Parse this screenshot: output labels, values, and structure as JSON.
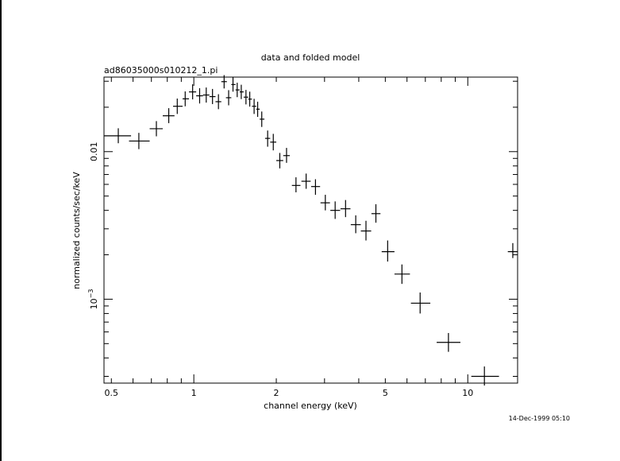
{
  "chart_data": {
    "type": "scatter",
    "title": "data and folded model",
    "subtitle": "ad86035000s010212_1.pi",
    "xlabel": "channel energy (keV)",
    "ylabel": "normalized counts/sec/keV",
    "timestamp": "14-Dec-1999 05:10",
    "x_scale": "log",
    "y_scale": "log",
    "xlim": [
      0.47,
      15.2
    ],
    "ylim": [
      0.00027,
      0.032
    ],
    "x_ticks": [
      {
        "value": 0.5,
        "label": "0.5"
      },
      {
        "value": 1,
        "label": "1"
      },
      {
        "value": 2,
        "label": "2"
      },
      {
        "value": 5,
        "label": "5"
      },
      {
        "value": 10,
        "label": "10"
      }
    ],
    "y_ticks": [
      {
        "value": 0.01,
        "label": "0.01"
      },
      {
        "value": 0.001,
        "label": "10",
        "exponent": "−3"
      }
    ],
    "grid": false,
    "points": [
      {
        "x": 0.53,
        "y": 0.0128,
        "xlo": 0.47,
        "xhi": 0.59,
        "ylo": 0.0114,
        "yhi": 0.0144
      },
      {
        "x": 0.63,
        "y": 0.0118,
        "xlo": 0.58,
        "xhi": 0.69,
        "ylo": 0.0104,
        "yhi": 0.0134
      },
      {
        "x": 0.73,
        "y": 0.0143,
        "xlo": 0.69,
        "xhi": 0.77,
        "ylo": 0.0127,
        "yhi": 0.0161
      },
      {
        "x": 0.81,
        "y": 0.0175,
        "xlo": 0.77,
        "xhi": 0.85,
        "ylo": 0.0156,
        "yhi": 0.0197
      },
      {
        "x": 0.87,
        "y": 0.0203,
        "xlo": 0.84,
        "xhi": 0.91,
        "ylo": 0.018,
        "yhi": 0.0229
      },
      {
        "x": 0.93,
        "y": 0.0228,
        "xlo": 0.91,
        "xhi": 0.96,
        "ylo": 0.0203,
        "yhi": 0.0256
      },
      {
        "x": 0.99,
        "y": 0.0254,
        "xlo": 0.96,
        "xhi": 1.02,
        "ylo": 0.0226,
        "yhi": 0.0286
      },
      {
        "x": 1.05,
        "y": 0.0239,
        "xlo": 1.02,
        "xhi": 1.08,
        "ylo": 0.0212,
        "yhi": 0.0269
      },
      {
        "x": 1.11,
        "y": 0.0242,
        "xlo": 1.08,
        "xhi": 1.14,
        "ylo": 0.0215,
        "yhi": 0.0272
      },
      {
        "x": 1.17,
        "y": 0.0236,
        "xlo": 1.14,
        "xhi": 1.2,
        "ylo": 0.021,
        "yhi": 0.0266
      },
      {
        "x": 1.23,
        "y": 0.0218,
        "xlo": 1.2,
        "xhi": 1.26,
        "ylo": 0.0194,
        "yhi": 0.0245
      },
      {
        "x": 1.29,
        "y": 0.0298,
        "xlo": 1.26,
        "xhi": 1.32,
        "ylo": 0.0268,
        "yhi": 0.033
      },
      {
        "x": 1.34,
        "y": 0.0232,
        "xlo": 1.31,
        "xhi": 1.37,
        "ylo": 0.0206,
        "yhi": 0.0261
      },
      {
        "x": 1.39,
        "y": 0.0285,
        "xlo": 1.37,
        "xhi": 1.42,
        "ylo": 0.0255,
        "yhi": 0.0318
      },
      {
        "x": 1.44,
        "y": 0.0262,
        "xlo": 1.42,
        "xhi": 1.47,
        "ylo": 0.0234,
        "yhi": 0.0293
      },
      {
        "x": 1.49,
        "y": 0.0254,
        "xlo": 1.47,
        "xhi": 1.52,
        "ylo": 0.0227,
        "yhi": 0.0284
      },
      {
        "x": 1.55,
        "y": 0.0234,
        "xlo": 1.52,
        "xhi": 1.58,
        "ylo": 0.0209,
        "yhi": 0.0262
      },
      {
        "x": 1.6,
        "y": 0.0227,
        "xlo": 1.58,
        "xhi": 1.63,
        "ylo": 0.0202,
        "yhi": 0.0255
      },
      {
        "x": 1.66,
        "y": 0.0203,
        "xlo": 1.63,
        "xhi": 1.69,
        "ylo": 0.018,
        "yhi": 0.0228
      },
      {
        "x": 1.71,
        "y": 0.0194,
        "xlo": 1.69,
        "xhi": 1.74,
        "ylo": 0.0172,
        "yhi": 0.0218
      },
      {
        "x": 1.77,
        "y": 0.0166,
        "xlo": 1.74,
        "xhi": 1.81,
        "ylo": 0.0147,
        "yhi": 0.0187
      },
      {
        "x": 1.86,
        "y": 0.0123,
        "xlo": 1.82,
        "xhi": 1.9,
        "ylo": 0.0108,
        "yhi": 0.0139
      },
      {
        "x": 1.95,
        "y": 0.0116,
        "xlo": 1.9,
        "xhi": 2.0,
        "ylo": 0.0102,
        "yhi": 0.0132
      },
      {
        "x": 2.06,
        "y": 0.0087,
        "xlo": 2.0,
        "xhi": 2.12,
        "ylo": 0.0077,
        "yhi": 0.0098
      },
      {
        "x": 2.18,
        "y": 0.0094,
        "xlo": 2.12,
        "xhi": 2.24,
        "ylo": 0.0084,
        "yhi": 0.0106
      },
      {
        "x": 2.36,
        "y": 0.0059,
        "xlo": 2.28,
        "xhi": 2.45,
        "ylo": 0.0053,
        "yhi": 0.0067
      },
      {
        "x": 2.57,
        "y": 0.0063,
        "xlo": 2.47,
        "xhi": 2.67,
        "ylo": 0.0056,
        "yhi": 0.0071
      },
      {
        "x": 2.78,
        "y": 0.0058,
        "xlo": 2.68,
        "xhi": 2.89,
        "ylo": 0.0051,
        "yhi": 0.0065
      },
      {
        "x": 3.02,
        "y": 0.0045,
        "xlo": 2.9,
        "xhi": 3.14,
        "ylo": 0.004,
        "yhi": 0.0051
      },
      {
        "x": 3.28,
        "y": 0.004,
        "xlo": 3.15,
        "xhi": 3.42,
        "ylo": 0.0035,
        "yhi": 0.0046
      },
      {
        "x": 3.58,
        "y": 0.0041,
        "xlo": 3.43,
        "xhi": 3.73,
        "ylo": 0.0036,
        "yhi": 0.0047
      },
      {
        "x": 3.9,
        "y": 0.0032,
        "xlo": 3.74,
        "xhi": 4.07,
        "ylo": 0.0028,
        "yhi": 0.0037
      },
      {
        "x": 4.25,
        "y": 0.0029,
        "xlo": 4.07,
        "xhi": 4.44,
        "ylo": 0.0025,
        "yhi": 0.0034
      },
      {
        "x": 4.62,
        "y": 0.0038,
        "xlo": 4.45,
        "xhi": 4.8,
        "ylo": 0.0033,
        "yhi": 0.0044
      },
      {
        "x": 5.1,
        "y": 0.0021,
        "xlo": 4.85,
        "xhi": 5.4,
        "ylo": 0.0018,
        "yhi": 0.0025
      },
      {
        "x": 5.75,
        "y": 0.00148,
        "xlo": 5.4,
        "xhi": 6.15,
        "ylo": 0.00127,
        "yhi": 0.00172
      },
      {
        "x": 6.7,
        "y": 0.00094,
        "xlo": 6.2,
        "xhi": 7.3,
        "ylo": 0.0008,
        "yhi": 0.00111
      },
      {
        "x": 8.5,
        "y": 0.00051,
        "xlo": 7.7,
        "xhi": 9.4,
        "ylo": 0.00044,
        "yhi": 0.00059
      },
      {
        "x": 11.5,
        "y": 0.0003,
        "xlo": 10.3,
        "xhi": 13.0,
        "ylo": 0.00026,
        "yhi": 0.00035
      },
      {
        "x": 14.6,
        "y": 0.0021,
        "xlo": 14.0,
        "xhi": 15.2,
        "ylo": 0.0019,
        "yhi": 0.0024
      }
    ]
  }
}
